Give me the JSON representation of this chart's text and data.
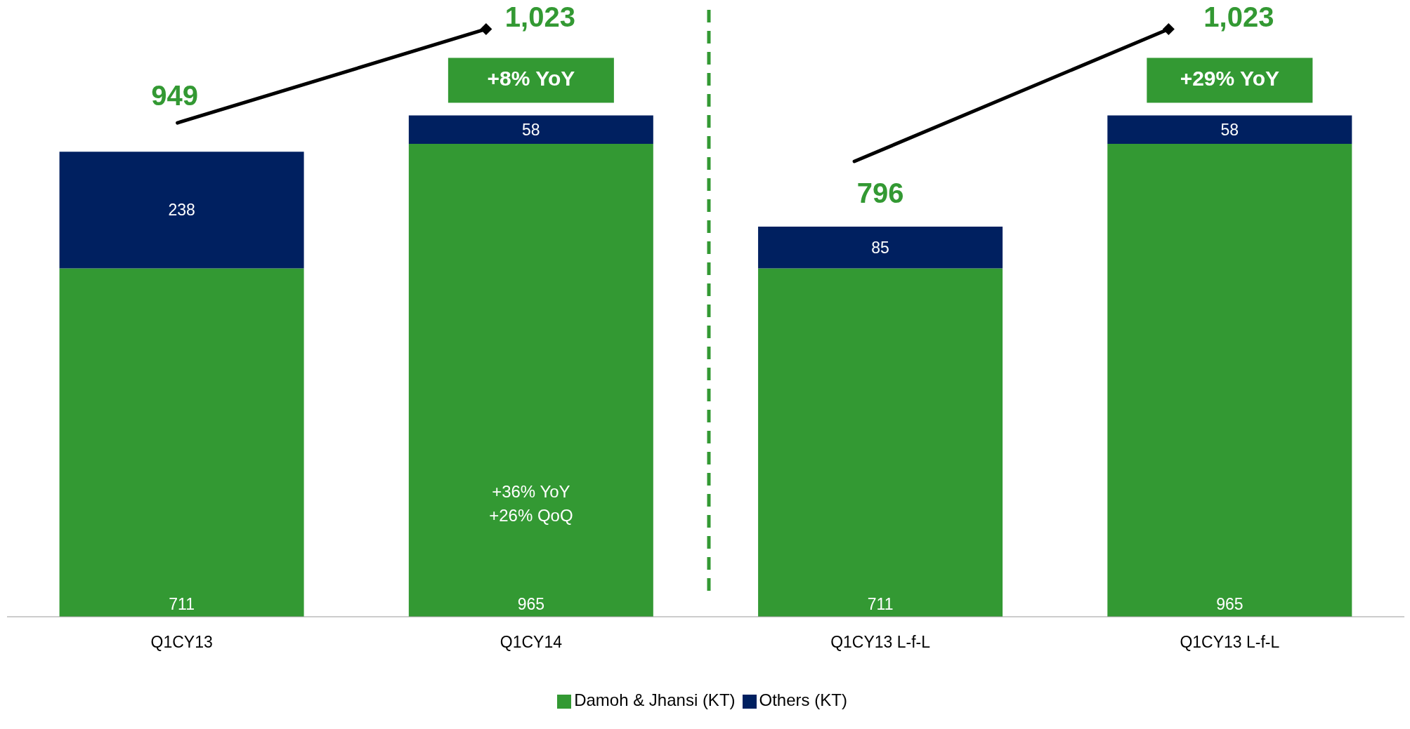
{
  "chart_data": {
    "type": "bar",
    "stacked": true,
    "categories": [
      "Q1CY13",
      "Q1CY14",
      "Q1CY13 L-f-L",
      "Q1CY13 L-f-L"
    ],
    "series": [
      {
        "name": "Damoh & Jhansi (KT)",
        "color": "#339933",
        "values": [
          711,
          965,
          711,
          965
        ]
      },
      {
        "name": "Others (KT)",
        "color": "#002060",
        "values": [
          238,
          58,
          85,
          58
        ]
      }
    ],
    "data_labels": true,
    "totals": [
      "949",
      "1,023",
      "796",
      "1,023"
    ],
    "annotations": [
      "+8% YoY",
      "+29% YoY",
      "+36% YoY\n+26% QoQ"
    ],
    "legend": "bottom"
  }
}
